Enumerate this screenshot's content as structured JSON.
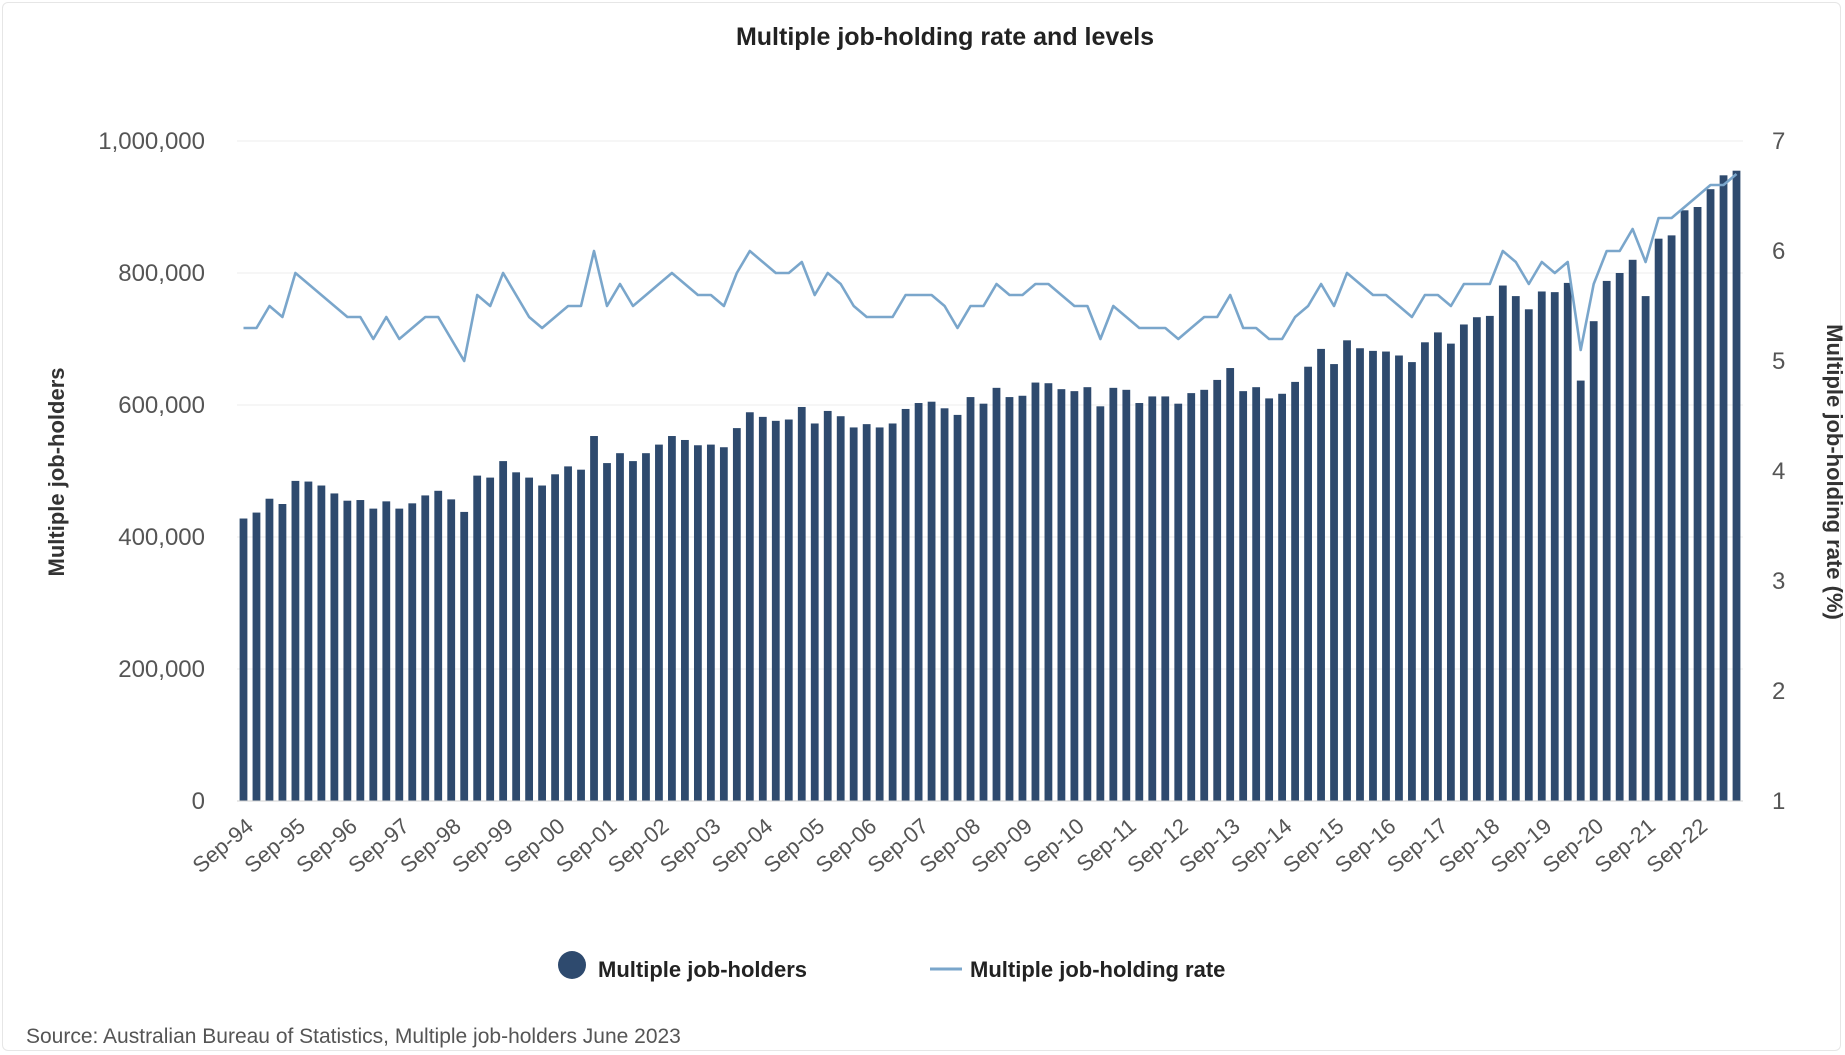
{
  "chart_data": {
    "type": "bar+line",
    "title": "Multiple job-holding rate and levels",
    "ylabel": "Multiple job-holders",
    "y2label": "Multiple job-holding rate (%)",
    "ylim": [
      0,
      1000000
    ],
    "y2lim": [
      1,
      7
    ],
    "yticks": [
      "0",
      "200,000",
      "400,000",
      "600,000",
      "800,000",
      "1,000,000"
    ],
    "y2ticks": [
      "1",
      "2",
      "3",
      "4",
      "5",
      "6",
      "7"
    ],
    "x_tick_labels": [
      "Sep-94",
      "Sep-95",
      "Sep-96",
      "Sep-97",
      "Sep-98",
      "Sep-99",
      "Sep-00",
      "Sep-01",
      "Sep-02",
      "Sep-03",
      "Sep-04",
      "Sep-05",
      "Sep-06",
      "Sep-07",
      "Sep-08",
      "Sep-09",
      "Sep-10",
      "Sep-11",
      "Sep-12",
      "Sep-13",
      "Sep-14",
      "Sep-15",
      "Sep-16",
      "Sep-17",
      "Sep-18",
      "Sep-19",
      "Sep-20",
      "Sep-21",
      "Sep-22"
    ],
    "series": [
      {
        "name": "Multiple job-holders",
        "kind": "bar",
        "color": "#2e4a6e",
        "values": [
          428000,
          437000,
          458000,
          450000,
          485000,
          484000,
          478000,
          466000,
          455000,
          456000,
          443000,
          454000,
          443000,
          451000,
          463000,
          470000,
          457000,
          438000,
          493000,
          490000,
          515000,
          498000,
          490000,
          478000,
          495000,
          507000,
          502000,
          553000,
          512000,
          527000,
          515000,
          527000,
          540000,
          553000,
          547000,
          539000,
          540000,
          536000,
          565000,
          589000,
          582000,
          576000,
          578000,
          597000,
          572000,
          591000,
          583000,
          566000,
          571000,
          566000,
          572000,
          594000,
          603000,
          605000,
          595000,
          585000,
          612000,
          602000,
          626000,
          612000,
          614000,
          634000,
          633000,
          624000,
          621000,
          627000,
          598000,
          626000,
          623000,
          603000,
          613000,
          613000,
          602000,
          618000,
          623000,
          638000,
          656000,
          621000,
          627000,
          610000,
          617000,
          635000,
          658000,
          685000,
          662000,
          698000,
          686000,
          682000,
          681000,
          675000,
          665000,
          695000,
          710000,
          693000,
          722000,
          733000,
          735000,
          781000,
          765000,
          745000,
          772000,
          771000,
          785000,
          637000,
          727000,
          788000,
          800000,
          820000,
          765000,
          852000,
          857000,
          895000,
          900000,
          927000,
          948000,
          955000
        ]
      },
      {
        "name": "Multiple job-holding rate",
        "kind": "line",
        "color": "#7aa6cb",
        "values": [
          5.3,
          5.3,
          5.5,
          5.4,
          5.8,
          5.7,
          5.6,
          5.5,
          5.4,
          5.4,
          5.2,
          5.4,
          5.2,
          5.3,
          5.4,
          5.4,
          5.2,
          5.0,
          5.6,
          5.5,
          5.8,
          5.6,
          5.4,
          5.3,
          5.4,
          5.5,
          5.5,
          6.0,
          5.5,
          5.7,
          5.5,
          5.6,
          5.7,
          5.8,
          5.7,
          5.6,
          5.6,
          5.5,
          5.8,
          6.0,
          5.9,
          5.8,
          5.8,
          5.9,
          5.6,
          5.8,
          5.7,
          5.5,
          5.4,
          5.4,
          5.4,
          5.6,
          5.6,
          5.6,
          5.5,
          5.3,
          5.5,
          5.5,
          5.7,
          5.6,
          5.6,
          5.7,
          5.7,
          5.6,
          5.5,
          5.5,
          5.2,
          5.5,
          5.4,
          5.3,
          5.3,
          5.3,
          5.2,
          5.3,
          5.4,
          5.4,
          5.6,
          5.3,
          5.3,
          5.2,
          5.2,
          5.4,
          5.5,
          5.7,
          5.5,
          5.8,
          5.7,
          5.6,
          5.6,
          5.5,
          5.4,
          5.6,
          5.6,
          5.5,
          5.7,
          5.7,
          5.7,
          6.0,
          5.9,
          5.7,
          5.9,
          5.8,
          5.9,
          5.1,
          5.7,
          6.0,
          6.0,
          6.2,
          5.9,
          6.3,
          6.3,
          6.4,
          6.5,
          6.6,
          6.6,
          6.7
        ]
      }
    ]
  },
  "legend": {
    "bars_label": "Multiple job-holders",
    "line_label": "Multiple job-holding rate"
  },
  "source": "Source: Australian Bureau of Statistics, Multiple job-holders June 2023"
}
